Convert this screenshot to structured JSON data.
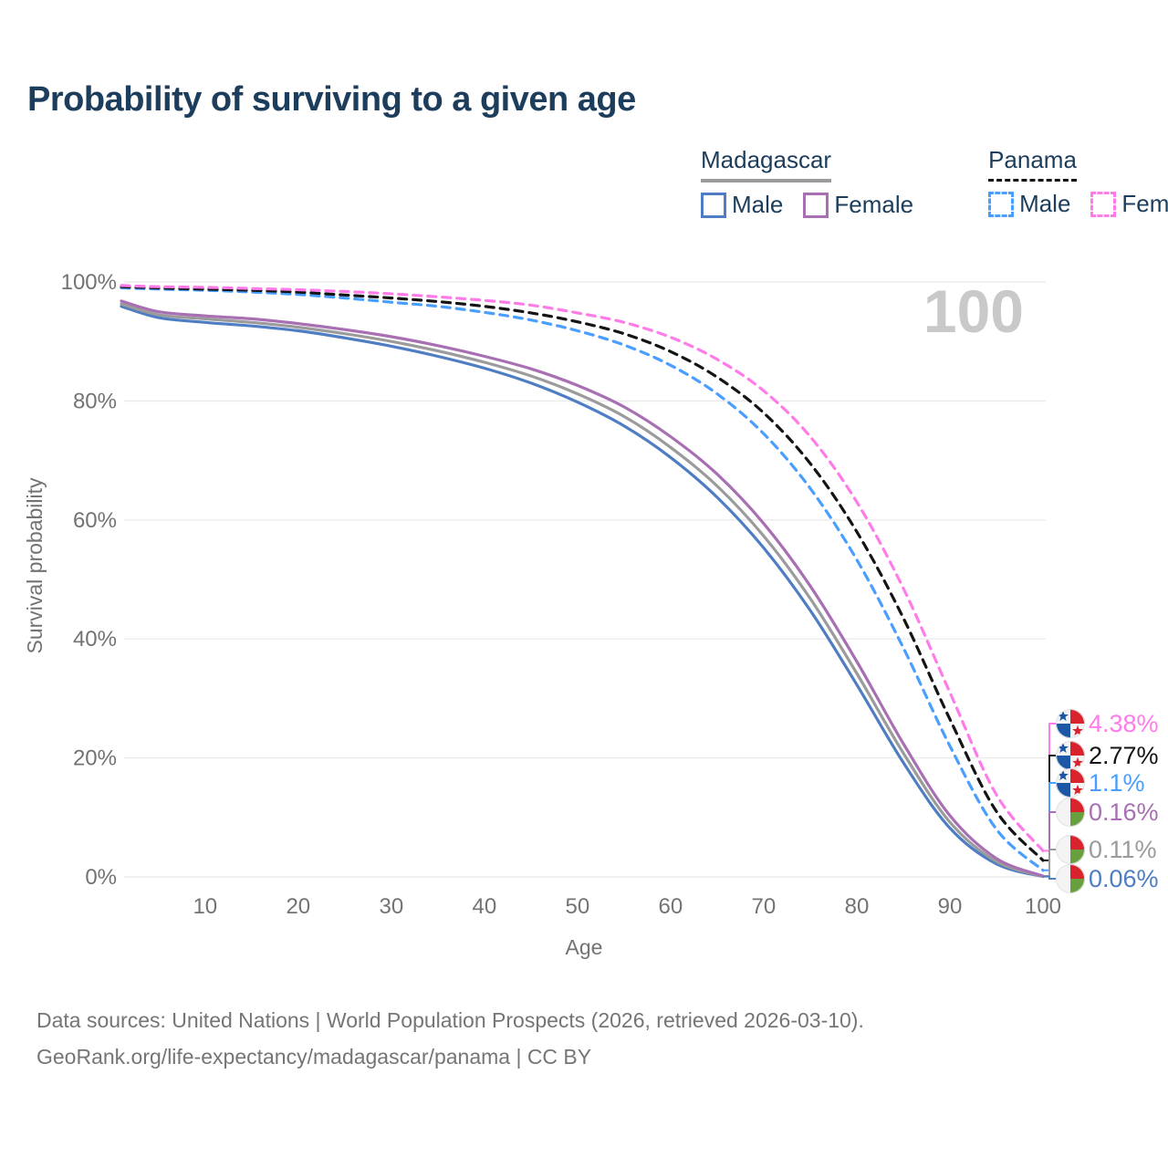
{
  "title": "Probability of surviving to a given age",
  "watermark": {
    "text": "100"
  },
  "legend": {
    "position": "top-right",
    "groups": [
      {
        "label": "Madagascar",
        "line_style": "solid",
        "underline_color": "#9b9b9b",
        "items": [
          {
            "label": "Male",
            "color": "#4e7dc4"
          },
          {
            "label": "Female",
            "color": "#a86fb3"
          }
        ]
      },
      {
        "label": "Panama",
        "line_style": "dashed",
        "underline_color": "#141414",
        "items": [
          {
            "label": "Male",
            "color": "#4a9eff"
          },
          {
            "label": "Female",
            "color": "#ff7ce8"
          }
        ]
      }
    ]
  },
  "axes": {
    "x": {
      "title": "Age",
      "min": 1,
      "max": 100,
      "ticks": [
        {
          "v": 10,
          "label": "10"
        },
        {
          "v": 20,
          "label": "20"
        },
        {
          "v": 30,
          "label": "30"
        },
        {
          "v": 40,
          "label": "40"
        },
        {
          "v": 50,
          "label": "50"
        },
        {
          "v": 60,
          "label": "60"
        },
        {
          "v": 70,
          "label": "70"
        },
        {
          "v": 80,
          "label": "80"
        },
        {
          "v": 90,
          "label": "90"
        },
        {
          "v": 100,
          "label": "100"
        }
      ]
    },
    "y": {
      "title": "Survival probability",
      "min": 0,
      "max": 100,
      "ticks": [
        {
          "v": 0,
          "label": "0%"
        },
        {
          "v": 20,
          "label": "20%"
        },
        {
          "v": 40,
          "label": "40%"
        },
        {
          "v": 60,
          "label": "60%"
        },
        {
          "v": 80,
          "label": "80%"
        },
        {
          "v": 100,
          "label": "100%"
        }
      ]
    }
  },
  "chart_data": {
    "type": "line",
    "grid": "horizontal",
    "x": [
      1,
      5,
      10,
      15,
      20,
      25,
      30,
      35,
      40,
      45,
      50,
      55,
      60,
      65,
      70,
      75,
      80,
      85,
      90,
      95,
      100
    ],
    "series": [
      {
        "name": "Madagascar Male",
        "country": "Madagascar",
        "sex": "Male",
        "line_style": "solid",
        "color": "#4e7dc4",
        "flag": "madagascar",
        "end_label": "0.06%",
        "values": [
          95.9,
          94.0,
          93.2,
          92.6,
          91.8,
          90.6,
          89.2,
          87.5,
          85.5,
          83.0,
          79.8,
          75.8,
          70.5,
          63.8,
          55.3,
          44.8,
          32.3,
          19.2,
          8.2,
          2.2,
          0.06
        ]
      },
      {
        "name": "Madagascar Both sexes",
        "country": "Madagascar",
        "sex": "Both sexes",
        "line_style": "solid",
        "color": "#9b9b9b",
        "flag": "madagascar",
        "end_label": "0.11%",
        "values": [
          96.3,
          94.5,
          93.8,
          93.2,
          92.4,
          91.3,
          90.0,
          88.4,
          86.5,
          84.2,
          81.2,
          77.4,
          72.2,
          65.7,
          57.3,
          46.8,
          34.2,
          20.8,
          9.2,
          2.6,
          0.11
        ]
      },
      {
        "name": "Madagascar Female",
        "country": "Madagascar",
        "sex": "Female",
        "line_style": "solid",
        "color": "#a86fb3",
        "flag": "madagascar",
        "end_label": "0.16%",
        "values": [
          96.8,
          95.0,
          94.3,
          93.8,
          93.0,
          92.0,
          90.8,
          89.3,
          87.5,
          85.4,
          82.6,
          79.0,
          74.0,
          67.7,
          59.4,
          48.9,
          36.2,
          22.4,
          10.3,
          3.1,
          0.16
        ]
      },
      {
        "name": "Panama Male",
        "country": "Panama",
        "sex": "Male",
        "line_style": "dashed",
        "color": "#4a9eff",
        "flag": "panama",
        "end_label": "1.1%",
        "values": [
          99.0,
          98.8,
          98.6,
          98.3,
          97.9,
          97.3,
          96.6,
          95.9,
          94.9,
          93.6,
          91.8,
          89.4,
          86.0,
          81.2,
          74.5,
          65.3,
          53.3,
          38.5,
          22.0,
          8.0,
          1.1
        ]
      },
      {
        "name": "Panama Both sexes",
        "country": "Panama",
        "sex": "Both sexes",
        "line_style": "dashed",
        "color": "#141414",
        "flag": "panama",
        "end_label": "2.77%",
        "values": [
          99.2,
          99.0,
          98.8,
          98.6,
          98.3,
          97.8,
          97.3,
          96.7,
          95.9,
          94.8,
          93.3,
          91.3,
          88.3,
          84.0,
          78.0,
          69.5,
          58.0,
          43.5,
          26.5,
          11.0,
          2.77
        ]
      },
      {
        "name": "Panama Female",
        "country": "Panama",
        "sex": "Female",
        "line_style": "dashed",
        "color": "#ff7ce8",
        "flag": "panama",
        "end_label": "4.38%",
        "values": [
          99.4,
          99.2,
          99.1,
          98.9,
          98.7,
          98.4,
          98.0,
          97.5,
          96.9,
          96.1,
          94.8,
          93.2,
          90.7,
          87.0,
          81.7,
          74.0,
          63.0,
          48.5,
          31.0,
          13.8,
          4.38
        ]
      }
    ]
  },
  "footer": {
    "line1": "Data sources: United Nations | World Population Prospects (2026, retrieved 2026-03-10).",
    "line2": "GeoRank.org/life-expectancy/madagascar/panama | CC BY"
  }
}
